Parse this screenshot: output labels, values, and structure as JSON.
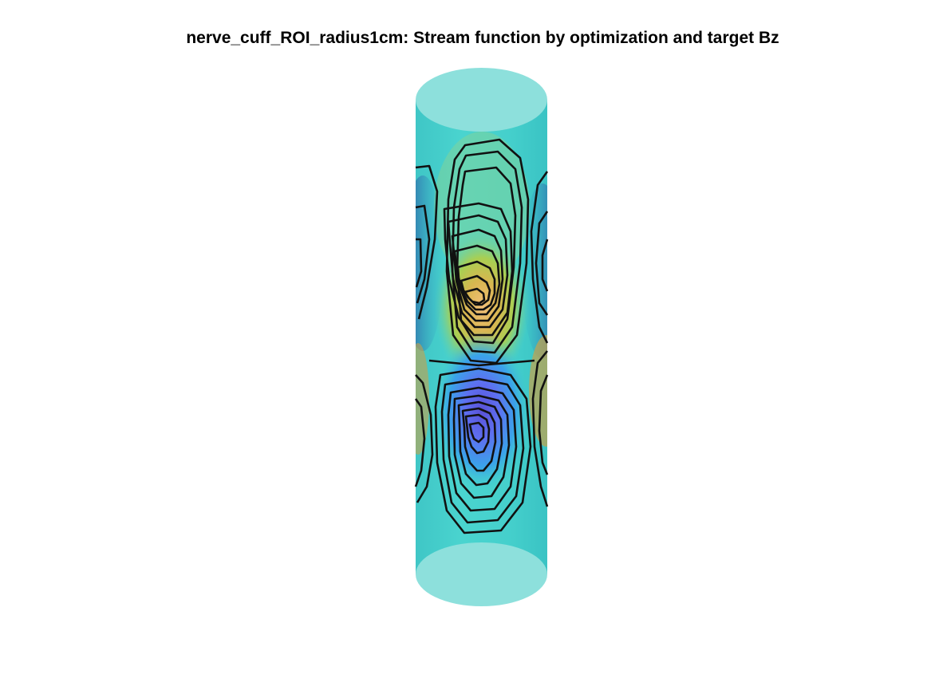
{
  "figure": {
    "title": "nerve_cuff_ROI_radius1cm: Stream function by optimization and target Bz"
  },
  "colors": {
    "background": "#ffffff",
    "surface": "#44d2cf",
    "cap": "#8de0dc",
    "contour": "#101010",
    "colormap": [
      "#3e26a8",
      "#4760f3",
      "#2f9ae8",
      "#36c9b3",
      "#a8d24c",
      "#f0be3b",
      "#f9fb15"
    ]
  },
  "scene": {
    "object": "cylinder",
    "view": "side",
    "features": [
      "transparent end caps",
      "colored stream-function patches",
      "black contour lines"
    ]
  }
}
